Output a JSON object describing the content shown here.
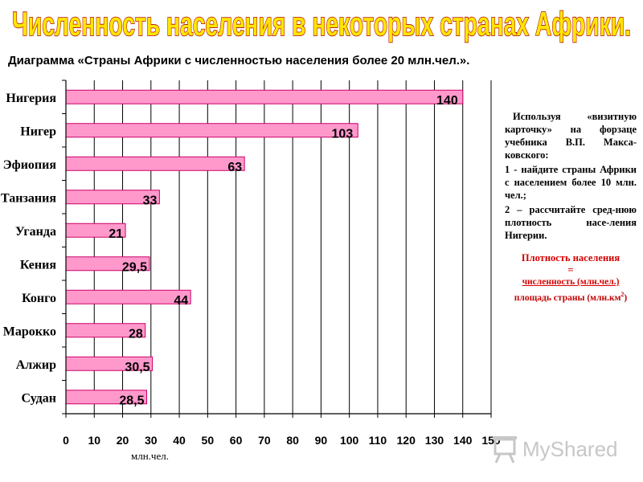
{
  "page_title": "Численность населения в некоторых странах Африки.",
  "subtitle": "Диаграмма «Страны Африки с численностью населения более 20 млн.чел.».",
  "task": {
    "intro": "Используя «визитную карточку» на форзаце учебника В.П. Макса-ковского:",
    "item1": "1 - найдите страны Африки с населением более 10 млн. чел.;",
    "item2": "2 – рассчитайте сред-нюю плотность насе-ления Нигерии."
  },
  "formula": {
    "title": "Плотность населения",
    "equals": "=",
    "numerator": "численность (млн.чел.)",
    "denominator": "площадь страны (млн.км",
    "denominator_sup": "2",
    "denominator_close": ")"
  },
  "logo": {
    "text": "MyShared",
    "icon": "projector-screen-icon"
  },
  "colors": {
    "title_fill": "#ffe600",
    "title_stroke": "#b00000",
    "bar_fill": "#ff99cc",
    "bar_stroke": "#cc0066",
    "formula": "#d40000"
  },
  "chart_data": {
    "type": "bar",
    "orientation": "horizontal",
    "categories": [
      "Нигерия",
      "Нигер",
      "Эфиопия",
      "Танзания",
      "Уганда",
      "Кения",
      "Конго",
      "Марокко",
      "Алжир",
      "Судан"
    ],
    "values": [
      140,
      103,
      63,
      33,
      21,
      29.5,
      44,
      28,
      30.5,
      28.5
    ],
    "value_labels": [
      "140",
      "103",
      "63",
      "33",
      "21",
      "29,5",
      "44",
      "28",
      "30,5",
      "28,5"
    ],
    "xlabel": "млн.чел.",
    "xlim": [
      0,
      150
    ],
    "xticks": [
      0,
      10,
      20,
      30,
      40,
      50,
      60,
      70,
      80,
      90,
      100,
      110,
      120,
      130,
      140,
      150
    ],
    "grid": "vertical",
    "legend": "none"
  }
}
